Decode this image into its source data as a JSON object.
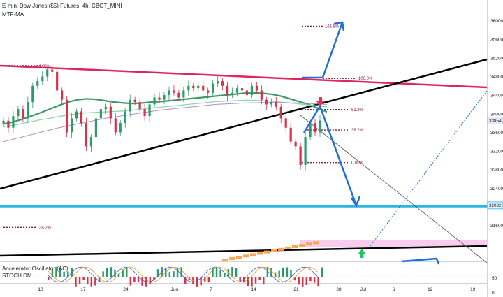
{
  "header": {
    "symbol_line": "E-mini Dow Jones ($5) Futures, 4h, CBOT_MINI",
    "indicator_line": "MTF-MA"
  },
  "oscillator": {
    "line1": "Accelerator Oscillator (AC)",
    "line2": "STOCH DM"
  },
  "colors": {
    "red_trend": "#e0245e",
    "black_trend": "#000000",
    "thin_trend": "#555555",
    "blue_arrow": "#1e6fd9",
    "cyan_level": "#2bb5e0",
    "pink_zone": "#f7c6ec",
    "orange_blocks": "#ffa54f",
    "fib_dots": "#8b1a4a",
    "ma_dark_green": "#3a9a6a",
    "ma_light_green": "#8ad9a8",
    "ma_purple": "#b48ad0",
    "ma_gray": "#6f7b80",
    "candle_up": "#2e9c6a",
    "candle_down": "#d8324a",
    "current_price_tag": "#e6eaf0",
    "green_marker": "#22c55e",
    "red_marker": "#ef2d5b"
  },
  "chart_data": {
    "type": "candlestick",
    "symbol": "E-mini Dow Jones ($5) Futures",
    "timeframe": "4h",
    "y_axis": {
      "ticks": [
        36000,
        35600,
        35200,
        34800,
        34400,
        34000,
        33600,
        33200,
        32800,
        32400,
        31600
      ],
      "tick_labels": [
        "36000",
        "35600",
        "35200",
        "34800",
        "34400",
        "34000",
        "33600",
        "33200",
        "32800",
        "32400",
        "31600"
      ],
      "ylim": [
        31240,
        36200
      ]
    },
    "x_axis": {
      "tick_labels": [
        "10",
        "17",
        "24",
        "Jun",
        "7",
        "14",
        "21",
        "28",
        "Jul",
        "6",
        "12",
        "19"
      ],
      "tick_days": [
        10,
        17,
        24,
        32,
        38,
        45,
        52,
        59,
        63,
        68,
        74,
        81
      ],
      "xlim": [
        4,
        85
      ]
    },
    "price_tags": [
      {
        "label": "33854",
        "value": 33854,
        "style": "current"
      },
      {
        "label": "32032",
        "value": 32032,
        "style": "level"
      }
    ],
    "fib_levels": [
      {
        "label": "161.8%",
        "value": 35880
      },
      {
        "label": "100.0%",
        "value": 34760
      },
      {
        "label": "61.8%",
        "value": 34090
      },
      {
        "label": "38.2%",
        "value": 33650
      },
      {
        "label": "0.00%",
        "value": 32950
      }
    ],
    "left_level": {
      "label": "38.2%",
      "value": 31560
    },
    "high_marker_label": "2.00%",
    "candles_close": [
      33850,
      33700,
      33950,
      34100,
      33900,
      34250,
      34600,
      34700,
      34800,
      34950,
      34900,
      34500,
      34300,
      33600,
      33900,
      34050,
      33800,
      33300,
      33500,
      33900,
      34100,
      34150,
      33900,
      33600,
      33800,
      34050,
      34300,
      34250,
      34100,
      33950,
      34200,
      34350,
      34300,
      34400,
      34500,
      34450,
      34350,
      34500,
      34600,
      34550,
      34600,
      34500,
      34450,
      34650,
      34700,
      34600,
      34400,
      34450,
      34550,
      34500,
      34400,
      34600,
      34500,
      34300,
      34200,
      34250,
      34150,
      33900,
      33700,
      33400,
      33300,
      32900,
      33500,
      33800,
      33600,
      33854
    ],
    "series": [
      {
        "name": "MA fast",
        "values": [
          33780,
          33820,
          33880,
          33950,
          34020,
          34100,
          34180,
          34250,
          34300,
          34320,
          34310,
          34280,
          34250,
          34230,
          34220,
          34230,
          34250,
          34260,
          34280,
          34300,
          34320,
          34340,
          34360,
          34380,
          34400,
          34420,
          34440,
          34450,
          34440,
          34420,
          34380,
          34320,
          34260,
          34200,
          34120,
          34040
        ]
      },
      {
        "name": "MA slow",
        "values": [
          33720,
          33750,
          33790,
          33830,
          33870,
          33900,
          33940,
          33970,
          34000,
          34020,
          34030,
          34040,
          34050,
          34060,
          34080,
          34100,
          34120,
          34140,
          34160,
          34180,
          34200,
          34220,
          34240,
          34260,
          34270,
          34280,
          34290,
          34290,
          34280,
          34270,
          34250,
          34230,
          34210,
          34190,
          34170,
          34150
        ]
      },
      {
        "name": "MA long",
        "values": [
          33400,
          33450,
          33500,
          33550,
          33600,
          33650,
          33700,
          33740,
          33780,
          33820,
          33860,
          33900,
          33930,
          33960,
          33990,
          34020,
          34050,
          34080,
          34100,
          34120,
          34140,
          34160,
          34180,
          34200,
          34210,
          34220,
          34230,
          34235,
          34240,
          34240,
          34240,
          34235,
          34230,
          34220,
          34210,
          34200
        ]
      }
    ]
  }
}
